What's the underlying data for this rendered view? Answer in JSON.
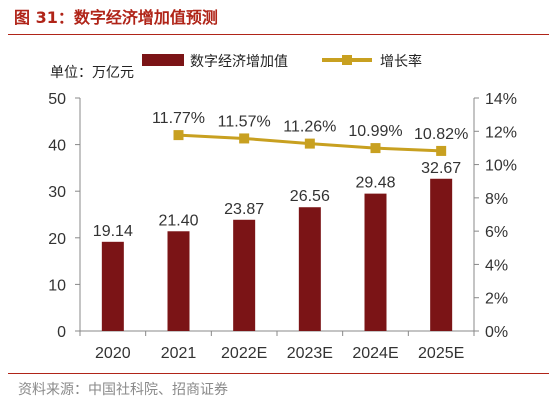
{
  "figure": {
    "title": "图 31：数字经济增加值预测",
    "source": "资料来源：中国社科院、招商证券"
  },
  "colors": {
    "bar": "#7b1416",
    "line": "#c8a020",
    "title": "#b02418",
    "source": "#8a8a8a"
  },
  "chart_data": {
    "type": "bar+line",
    "unit_label": "单位：万亿元",
    "categories": [
      "2020",
      "2021",
      "2022E",
      "2023E",
      "2024E",
      "2025E"
    ],
    "series": [
      {
        "name": "数字经济增加值",
        "type": "bar",
        "axis": "left",
        "values": [
          19.14,
          21.4,
          23.87,
          26.56,
          29.48,
          32.67
        ],
        "labels": [
          "19.14",
          "21.40",
          "23.87",
          "26.56",
          "29.48",
          "32.67"
        ]
      },
      {
        "name": "增长率",
        "type": "line",
        "axis": "right",
        "values": [
          null,
          11.77,
          11.57,
          11.26,
          10.99,
          10.82
        ],
        "labels": [
          null,
          "11.77%",
          "11.57%",
          "11.26%",
          "10.99%",
          "10.82%"
        ]
      }
    ],
    "y_left": {
      "min": 0,
      "max": 50,
      "ticks": [
        0,
        10,
        20,
        30,
        40,
        50
      ]
    },
    "y_right": {
      "min": 0,
      "max": 14,
      "ticks": [
        "0%",
        "2%",
        "4%",
        "6%",
        "8%",
        "10%",
        "12%",
        "14%"
      ]
    },
    "legend_position": "top",
    "grid": false
  }
}
